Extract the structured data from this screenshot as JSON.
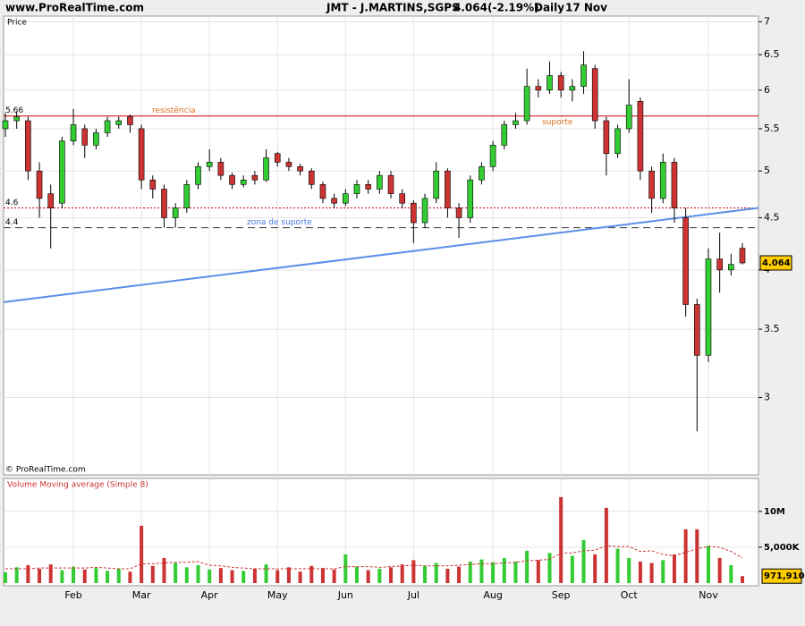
{
  "header": {
    "site": "www.ProRealTime.com",
    "instrument": "JMT - J.MARTINS,SGPS",
    "change": "(-2.19%)",
    "period": "Daily",
    "date": "17 Nov"
  },
  "chart_data": [
    {
      "type": "candlestick",
      "title": "Price",
      "source": "© ProRealTime.com",
      "open": [
        5.5,
        5.6,
        5.6,
        5.0,
        4.75,
        4.65,
        5.35,
        5.5,
        5.3,
        5.45,
        5.55,
        5.65,
        5.5,
        4.9,
        4.8,
        4.5,
        4.6,
        4.85,
        5.05,
        5.1,
        4.95,
        4.85,
        4.95,
        4.9,
        5.2,
        5.1,
        5.05,
        5.0,
        4.85,
        4.7,
        4.65,
        4.75,
        4.85,
        4.8,
        4.95,
        4.75,
        4.65,
        4.45,
        4.7,
        5.0,
        4.6,
        4.5,
        4.9,
        5.05,
        5.3,
        5.55,
        5.6,
        6.05,
        6.0,
        6.2,
        6.0,
        6.05,
        6.3,
        5.6,
        5.2,
        5.5,
        5.85,
        5.0,
        4.7,
        5.1,
        4.5,
        3.7,
        3.3,
        4.1,
        4.0,
        4.2
      ],
      "high": [
        5.7,
        5.72,
        5.65,
        5.1,
        4.85,
        5.4,
        5.75,
        5.55,
        5.5,
        5.65,
        5.65,
        5.68,
        5.55,
        4.95,
        4.85,
        4.65,
        4.9,
        5.1,
        5.25,
        5.15,
        4.98,
        4.95,
        5.0,
        5.25,
        5.22,
        5.15,
        5.08,
        5.03,
        4.88,
        4.75,
        4.8,
        4.9,
        4.9,
        5.0,
        5.0,
        4.8,
        4.68,
        4.75,
        5.1,
        5.03,
        4.65,
        4.95,
        5.1,
        5.35,
        5.6,
        5.7,
        6.3,
        6.15,
        6.4,
        6.25,
        6.15,
        6.55,
        6.35,
        5.65,
        5.55,
        6.15,
        5.9,
        5.05,
        5.2,
        5.15,
        4.6,
        3.75,
        4.2,
        4.35,
        4.15,
        4.25
      ],
      "low": [
        5.4,
        5.5,
        4.9,
        4.5,
        4.2,
        4.6,
        5.3,
        5.15,
        5.25,
        5.4,
        5.5,
        5.45,
        4.8,
        4.7,
        4.4,
        4.4,
        4.55,
        4.8,
        5.0,
        4.9,
        4.8,
        4.82,
        4.85,
        4.88,
        5.05,
        5.0,
        4.95,
        4.8,
        4.65,
        4.6,
        4.62,
        4.7,
        4.75,
        4.75,
        4.7,
        4.6,
        4.25,
        4.4,
        4.65,
        4.5,
        4.3,
        4.45,
        4.85,
        5.0,
        5.25,
        5.5,
        5.55,
        5.9,
        5.95,
        5.9,
        5.85,
        5.95,
        5.5,
        4.95,
        5.15,
        5.45,
        4.9,
        4.55,
        4.65,
        4.45,
        3.6,
        2.78,
        3.25,
        3.8,
        3.95,
        4.05
      ],
      "close": [
        5.6,
        5.65,
        5.0,
        4.7,
        4.6,
        5.35,
        5.55,
        5.3,
        5.45,
        5.6,
        5.6,
        5.55,
        4.9,
        4.8,
        4.5,
        4.6,
        4.85,
        5.05,
        5.1,
        4.95,
        4.85,
        4.9,
        4.9,
        5.15,
        5.1,
        5.05,
        5.0,
        4.85,
        4.7,
        4.65,
        4.75,
        4.85,
        4.8,
        4.95,
        4.75,
        4.65,
        4.45,
        4.7,
        5.0,
        4.6,
        4.5,
        4.9,
        5.05,
        5.3,
        5.55,
        5.6,
        6.05,
        6.0,
        6.2,
        6.0,
        6.05,
        6.35,
        5.6,
        5.2,
        5.5,
        5.8,
        5.0,
        4.7,
        5.1,
        4.6,
        3.7,
        3.3,
        4.1,
        4.0,
        4.05,
        4.064
      ],
      "up_color": "#33cc33",
      "down_color": "#cc3333",
      "ylim": [
        2.52,
        7.09
      ],
      "log_scale": true,
      "yticks": [
        3,
        3.5,
        4,
        4.5,
        5,
        5.5,
        6,
        6.5,
        7
      ],
      "grid": true,
      "levels": [
        {
          "value": 5.66,
          "labels": [
            "resistência",
            "suporte"
          ],
          "color": "#cc0000",
          "label_color": "#e07020",
          "style": "solid"
        },
        {
          "value": 4.6,
          "color": "#cc0000",
          "style": "dotted"
        },
        {
          "value": 4.4,
          "labels": [
            "zona de suporte"
          ],
          "color": "#333333",
          "label_color": "#4477dd",
          "style": "dashed"
        }
      ],
      "trendline": {
        "values": [
          3.72,
          4.6
        ],
        "color": "#5b8fe8"
      }
    },
    {
      "type": "bar",
      "title": "Volume Moving average (Simple 8)",
      "categories": [
        null,
        null,
        null,
        null,
        null,
        null,
        "Feb",
        null,
        null,
        null,
        null,
        null,
        "Mar",
        null,
        null,
        null,
        null,
        null,
        "Apr",
        null,
        null,
        null,
        null,
        null,
        "May",
        null,
        null,
        null,
        null,
        null,
        "Jun",
        null,
        null,
        null,
        null,
        null,
        "Jul",
        null,
        null,
        null,
        null,
        null,
        null,
        "Aug",
        null,
        null,
        null,
        null,
        null,
        "Sep",
        null,
        null,
        null,
        null,
        null,
        "Oct",
        null,
        null,
        null,
        null,
        null,
        null,
        "Nov",
        null,
        null,
        null
      ],
      "values": [
        1500000,
        2200000,
        2500000,
        2000000,
        2600000,
        1800000,
        2300000,
        1900000,
        2100000,
        1700000,
        2000000,
        1600000,
        8000000,
        2400000,
        3500000,
        2800000,
        2200000,
        2500000,
        1900000,
        2100000,
        1800000,
        1700000,
        2000000,
        2600000,
        1800000,
        2200000,
        1600000,
        2400000,
        2100000,
        1900000,
        4000000,
        2300000,
        1800000,
        2000000,
        2200000,
        2600000,
        3200000,
        2400000,
        2800000,
        2000000,
        2300000,
        3000000,
        3300000,
        2900000,
        3500000,
        3000000,
        4500000,
        3200000,
        4200000,
        12000000,
        3800000,
        6000000,
        4000000,
        10500000,
        4800000,
        3500000,
        3000000,
        2800000,
        3200000,
        4000000,
        7500000,
        7500000,
        5200000,
        3500000,
        2500000,
        971910
      ],
      "last_label": "971,910",
      "moving_average": {
        "values": [
          2000000,
          2000000,
          2000000,
          2100000,
          2100000,
          2100000,
          2100000,
          2100000,
          2200000,
          2100000,
          2000000,
          2000000,
          2700000,
          2700000,
          2800000,
          2900000,
          2900000,
          3000000,
          2500000,
          2400000,
          2200000,
          2100000,
          2000000,
          2000000,
          2000000,
          2000000,
          2000000,
          2000000,
          2000000,
          2000000,
          2300000,
          2300000,
          2300000,
          2200000,
          2300000,
          2400000,
          2500000,
          2400000,
          2400000,
          2400000,
          2500000,
          2600000,
          2700000,
          2700000,
          2800000,
          2900000,
          3100000,
          3200000,
          3300000,
          4200000,
          4200000,
          4500000,
          4600000,
          5200000,
          5100000,
          5100000,
          4400000,
          4500000,
          4000000,
          3800000,
          4300000,
          4800000,
          5100000,
          5000000,
          4400000,
          3500000
        ],
        "color": "#cc3333"
      },
      "ylim": [
        0,
        14600000
      ],
      "yticks": [
        {
          "value": 5000000,
          "label": "5,000K"
        },
        {
          "value": 10000000,
          "label": "10M"
        }
      ],
      "grid": true
    }
  ]
}
